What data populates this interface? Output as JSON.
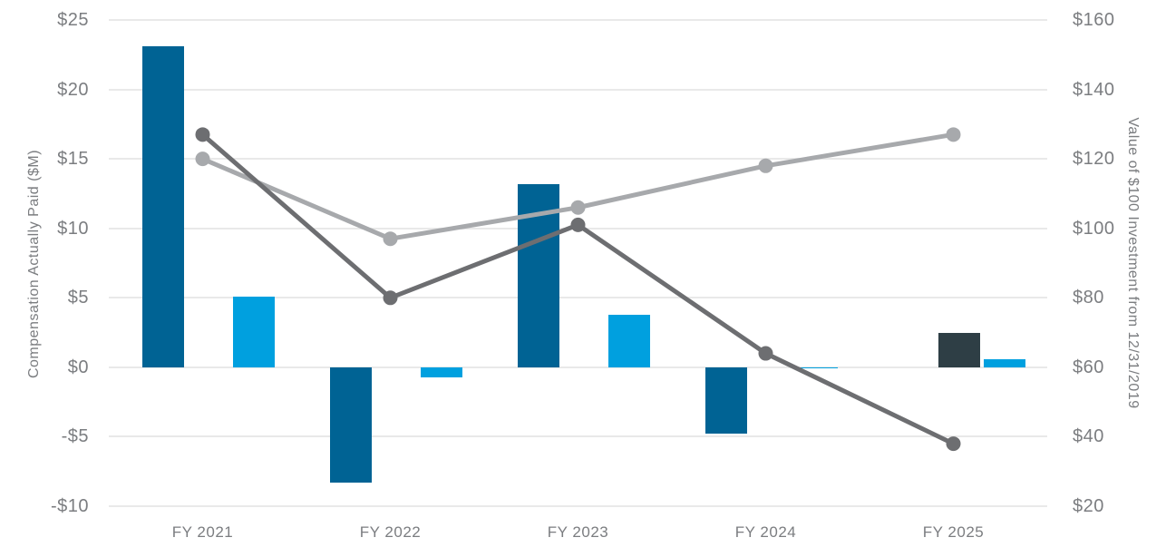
{
  "colors": {
    "background": "#ffffff",
    "grid": "#e9e9e9",
    "tick_text": "#7b7d80",
    "dark_blue_bar": "#006394",
    "charcoal_bar": "#2e3e45",
    "light_blue_bar": "#00a0df",
    "dark_gray_line": "#6d6e71",
    "light_gray_line": "#a7a9ac"
  },
  "chart_data": {
    "type": "combo",
    "subtypes": [
      "bar",
      "line"
    ],
    "title": "",
    "categories": [
      "FY 2021",
      "FY 2022",
      "FY 2023",
      "FY 2024",
      "FY 2025"
    ],
    "bar_series": [
      {
        "name": "dark-blue-bars",
        "color": "#006394",
        "axis": "left",
        "values": [
          23.1,
          -8.3,
          13.2,
          -4.8,
          null
        ]
      },
      {
        "name": "charcoal-bars",
        "color": "#2e3e45",
        "axis": "left",
        "values": [
          null,
          null,
          null,
          null,
          2.5
        ]
      },
      {
        "name": "light-blue-bars",
        "color": "#00a0df",
        "axis": "left",
        "values": [
          5.1,
          -0.7,
          3.8,
          -0.1,
          0.6
        ]
      }
    ],
    "line_series": [
      {
        "name": "light-gray-line",
        "color": "#a7a9ac",
        "axis": "right",
        "values": [
          120,
          97,
          106,
          118,
          127
        ]
      },
      {
        "name": "dark-gray-line",
        "color": "#6d6e71",
        "axis": "right",
        "values": [
          127,
          80,
          101,
          64,
          38
        ]
      }
    ],
    "axes": {
      "left": {
        "label": "Compensation Actually Paid ($M)",
        "ticks": [
          "$25",
          "$20",
          "$15",
          "$10",
          "$5",
          "$0",
          "-$5",
          "-$10"
        ],
        "min": -10,
        "max": 25
      },
      "right": {
        "label": "Value of $100 Investment from 12/31/2019",
        "ticks": [
          "$160",
          "$140",
          "$120",
          "$100",
          "$80",
          "$60",
          "$40",
          "$20"
        ],
        "min": 20,
        "max": 160
      },
      "x": {
        "labels": [
          "FY 2021",
          "FY 2022",
          "FY 2023",
          "FY 2024",
          "FY 2025"
        ]
      }
    },
    "grid": true,
    "legend": "none"
  }
}
